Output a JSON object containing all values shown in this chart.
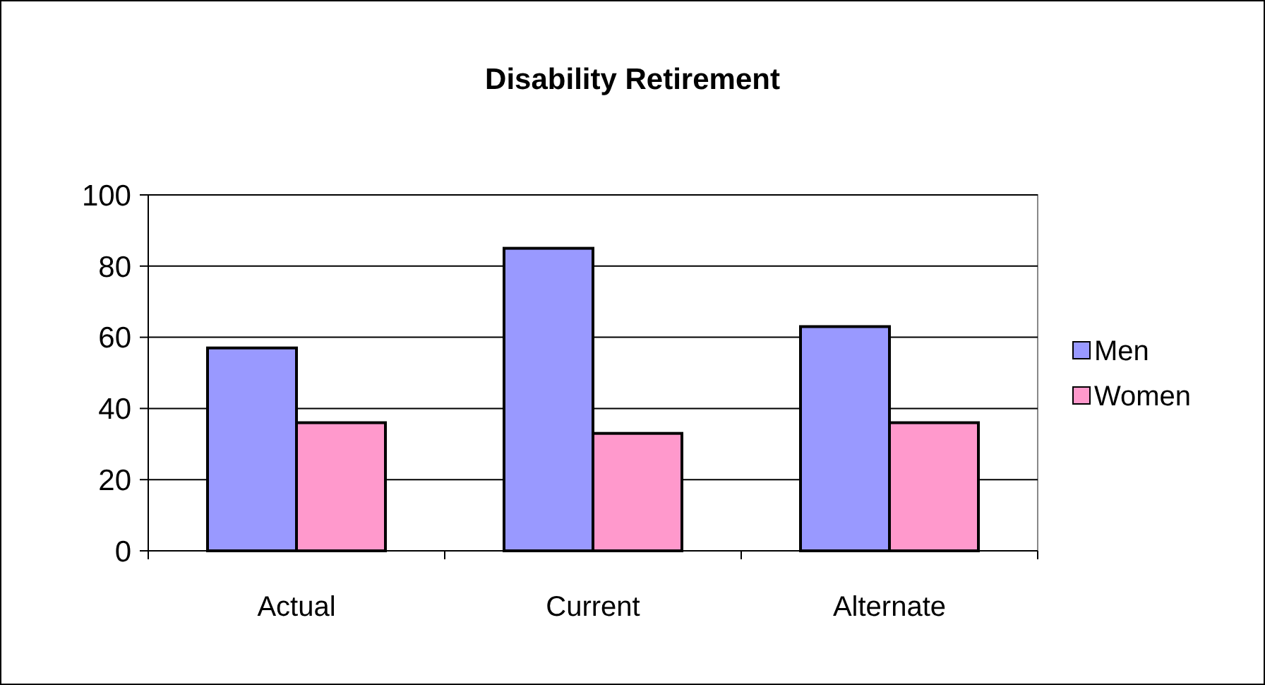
{
  "chart_data": {
    "type": "bar",
    "title": "Disability Retirement",
    "categories": [
      "Actual",
      "Current",
      "Alternate"
    ],
    "series": [
      {
        "name": "Men",
        "color": "#9999ff",
        "values": [
          57,
          85,
          63
        ]
      },
      {
        "name": "Women",
        "color": "#ff99cc",
        "values": [
          36,
          33,
          36
        ]
      }
    ],
    "ylim": [
      0,
      100
    ],
    "yticks": [
      0,
      20,
      40,
      60,
      80,
      100
    ],
    "grid": "y",
    "legend": "right"
  }
}
